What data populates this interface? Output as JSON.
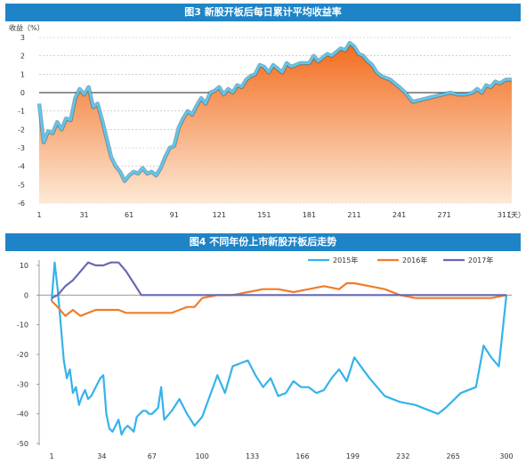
{
  "chart_data": [
    {
      "type": "area",
      "title": "图3  新股开板后每日累计平均收益率",
      "ylabel": "收益（%）",
      "xunit": "（天）",
      "ylim": [
        -6,
        3
      ],
      "yticks": [
        3,
        2,
        1,
        0,
        -1,
        -2,
        -3,
        -4,
        -5,
        -6
      ],
      "xlim": [
        1,
        316
      ],
      "xticks": [
        1,
        31,
        61,
        91,
        121,
        151,
        181,
        211,
        241,
        271,
        311
      ],
      "grid": true,
      "legend": "none",
      "colors": {
        "line": "#5bc8ef",
        "fill_top": "#f26b1d",
        "fill_bottom": "#fde9d6"
      },
      "series": [
        {
          "x": [
            1,
            4,
            7,
            10,
            13,
            16,
            19,
            22,
            25,
            28,
            31,
            34,
            37,
            40,
            43,
            46,
            49,
            52,
            55,
            58,
            61,
            64,
            67,
            70,
            73,
            76,
            79,
            82,
            85,
            88,
            91,
            94,
            97,
            100,
            103,
            106,
            109,
            112,
            115,
            118,
            121,
            124,
            127,
            130,
            133,
            136,
            139,
            142,
            145,
            148,
            151,
            154,
            157,
            160,
            163,
            166,
            169,
            172,
            175,
            178,
            181,
            184,
            187,
            190,
            193,
            196,
            199,
            202,
            205,
            208,
            211,
            214,
            217,
            220,
            223,
            226,
            229,
            232,
            235,
            238,
            241,
            245,
            250,
            255,
            260,
            265,
            270,
            275,
            280,
            285,
            290,
            293,
            296,
            299,
            302,
            305,
            308,
            312,
            316
          ],
          "values": [
            -0.6,
            -2.7,
            -2.1,
            -2.2,
            -1.6,
            -2.0,
            -1.4,
            -1.5,
            -0.3,
            0.2,
            -0.1,
            0.3,
            -0.8,
            -0.6,
            -1.5,
            -2.5,
            -3.5,
            -4.0,
            -4.3,
            -4.8,
            -4.5,
            -4.3,
            -4.4,
            -4.1,
            -4.4,
            -4.3,
            -4.5,
            -4.1,
            -3.5,
            -3.0,
            -2.9,
            -1.9,
            -1.4,
            -1.0,
            -1.2,
            -0.7,
            -0.3,
            -0.6,
            0.0,
            0.1,
            0.3,
            -0.1,
            0.2,
            0.0,
            0.4,
            0.3,
            0.7,
            0.9,
            1.0,
            1.5,
            1.4,
            1.1,
            1.5,
            1.3,
            1.1,
            1.6,
            1.4,
            1.5,
            1.6,
            1.6,
            1.6,
            2.0,
            1.7,
            1.9,
            2.1,
            2.0,
            2.2,
            2.4,
            2.3,
            2.7,
            2.5,
            2.1,
            2.0,
            1.7,
            1.5,
            1.1,
            0.9,
            0.8,
            0.7,
            0.5,
            0.3,
            0.0,
            -0.5,
            -0.4,
            -0.3,
            -0.2,
            -0.1,
            0.0,
            -0.1,
            -0.1,
            0.0,
            0.2,
            0.0,
            0.4,
            0.3,
            0.6,
            0.5,
            0.7,
            0.7
          ]
        }
      ]
    },
    {
      "type": "line",
      "title": "图4  不同年份上市新股开板后走势",
      "ylim": [
        -50,
        10
      ],
      "yticks": [
        10,
        0,
        -10,
        -20,
        -30,
        -40,
        -50
      ],
      "xlim": [
        1,
        300
      ],
      "xticks": [
        1,
        34,
        67,
        100,
        133,
        166,
        199,
        232,
        265,
        300
      ],
      "grid": false,
      "legend": "top-right",
      "series": [
        {
          "name": "2015年",
          "color": "#35b3ea",
          "x": [
            1,
            3,
            5,
            7,
            9,
            11,
            13,
            15,
            17,
            19,
            21,
            23,
            25,
            27,
            29,
            31,
            33,
            35,
            37,
            39,
            41,
            43,
            45,
            47,
            49,
            51,
            53,
            55,
            57,
            59,
            61,
            63,
            65,
            67,
            69,
            71,
            73,
            75,
            80,
            85,
            90,
            95,
            100,
            105,
            110,
            115,
            120,
            125,
            130,
            135,
            140,
            145,
            150,
            155,
            160,
            165,
            170,
            175,
            180,
            185,
            190,
            195,
            200,
            210,
            220,
            230,
            240,
            250,
            255,
            260,
            270,
            280,
            285,
            290,
            295,
            300
          ],
          "values": [
            -2,
            11,
            2,
            -10,
            -22,
            -28,
            -25,
            -33,
            -31,
            -37,
            -34,
            -32,
            -35,
            -34,
            -32,
            -30,
            -28,
            -27,
            -40,
            -45,
            -46,
            -44,
            -42,
            -47,
            -45,
            -44,
            -45,
            -46,
            -41,
            -40,
            -39,
            -39,
            -40,
            -40,
            -39,
            -38,
            -31,
            -42,
            -39,
            -35,
            -40,
            -44,
            -41,
            -34,
            -27,
            -33,
            -24,
            -23,
            -22,
            -27,
            -31,
            -28,
            -34,
            -33,
            -29,
            -31,
            -31,
            -33,
            -32,
            -28,
            -25,
            -29,
            -21,
            -28,
            -34,
            -36,
            -37,
            -39,
            -40,
            -38,
            -33,
            -31,
            -17,
            -21,
            -24,
            0
          ]
        },
        {
          "name": "2016年",
          "color": "#f07d2e",
          "x": [
            1,
            5,
            10,
            15,
            20,
            25,
            30,
            35,
            40,
            45,
            50,
            55,
            60,
            65,
            70,
            75,
            80,
            85,
            90,
            95,
            100,
            110,
            120,
            130,
            140,
            150,
            160,
            170,
            180,
            190,
            195,
            200,
            210,
            220,
            230,
            240,
            250,
            260,
            270,
            280,
            290,
            300
          ],
          "values": [
            -2,
            -4,
            -7,
            -5,
            -7,
            -6,
            -5,
            -5,
            -5,
            -5,
            -6,
            -6,
            -6,
            -6,
            -6,
            -6,
            -6,
            -5,
            -4,
            -4,
            -1,
            0,
            0,
            1,
            2,
            2,
            1,
            2,
            3,
            2,
            4,
            4,
            3,
            2,
            0,
            -1,
            -1,
            -1,
            -1,
            -1,
            -1,
            0
          ]
        },
        {
          "name": "2017年",
          "color": "#6868b4",
          "x": [
            1,
            5,
            10,
            15,
            20,
            25,
            30,
            35,
            40,
            45,
            50,
            55,
            60,
            70,
            100,
            150,
            200,
            250,
            300
          ],
          "values": [
            -1,
            0,
            3,
            5,
            8,
            11,
            10,
            10,
            11,
            11,
            8,
            4,
            0,
            0,
            0,
            0,
            0,
            0,
            0
          ]
        }
      ]
    }
  ]
}
